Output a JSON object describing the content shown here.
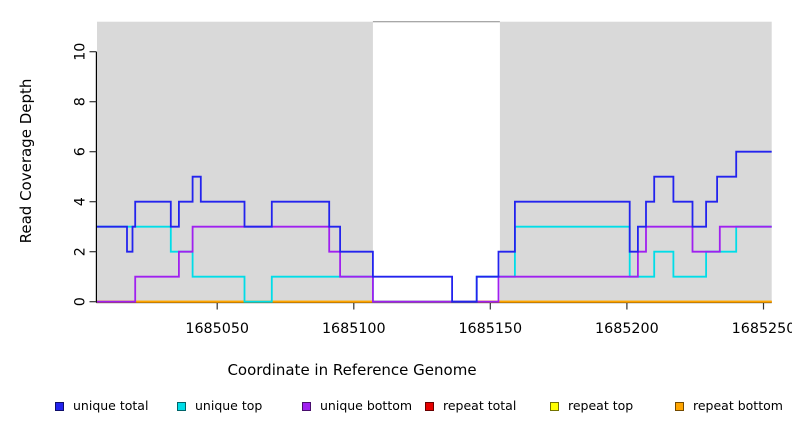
{
  "chart_data": {
    "type": "line",
    "subtype": "step",
    "title": "",
    "xlabel": "Coordinate in Reference Genome",
    "ylabel": "Read Coverage Depth",
    "xlim": [
      1685006,
      1685253
    ],
    "ylim": [
      0,
      11.2
    ],
    "x_ticks": [
      1685050,
      1685100,
      1685150,
      1685200,
      1685250
    ],
    "y_ticks": [
      0,
      2,
      4,
      6,
      8,
      10
    ],
    "grid": false,
    "plot_bg_color": "#d9d9d9",
    "gap_region": {
      "x_start": 1685107,
      "x_end": 1685153.5,
      "color": "#ffffff",
      "top_border_color": "#8c8c8c"
    },
    "axis_color": "#000000",
    "series": [
      {
        "name": "repeat total",
        "color": "#e60000",
        "steps": [
          [
            1685006,
            0
          ]
        ]
      },
      {
        "name": "repeat top",
        "color": "#ffff00",
        "steps": [
          [
            1685006,
            0
          ]
        ]
      },
      {
        "name": "repeat bottom",
        "color": "#ffa500",
        "steps": [
          [
            1685006,
            0
          ]
        ]
      },
      {
        "name": "unique top",
        "color": "#00dde8",
        "steps": [
          [
            1685006,
            3
          ],
          [
            1685033,
            2
          ],
          [
            1685041,
            1
          ],
          [
            1685060,
            0
          ],
          [
            1685070,
            1
          ],
          [
            1685107,
            0
          ],
          [
            1685145,
            1
          ],
          [
            1685159,
            3
          ],
          [
            1685201,
            1
          ],
          [
            1685210,
            2
          ],
          [
            1685217,
            1
          ],
          [
            1685229,
            2
          ],
          [
            1685240,
            3
          ]
        ]
      },
      {
        "name": "unique bottom",
        "color": "#a020f0",
        "steps": [
          [
            1685006,
            0
          ],
          [
            1685020,
            1
          ],
          [
            1685036,
            2
          ],
          [
            1685041,
            3
          ],
          [
            1685091,
            2
          ],
          [
            1685095,
            1
          ],
          [
            1685107,
            0
          ],
          [
            1685153,
            1
          ],
          [
            1685204,
            2
          ],
          [
            1685207,
            3
          ],
          [
            1685224,
            2
          ],
          [
            1685234,
            3
          ]
        ]
      },
      {
        "name": "unique total",
        "color": "#2323ee",
        "steps": [
          [
            1685006,
            3
          ],
          [
            1685017,
            2
          ],
          [
            1685019,
            3
          ],
          [
            1685020,
            4
          ],
          [
            1685033,
            3
          ],
          [
            1685036,
            4
          ],
          [
            1685041,
            5
          ],
          [
            1685044,
            4
          ],
          [
            1685060,
            3
          ],
          [
            1685070,
            4
          ],
          [
            1685091,
            3
          ],
          [
            1685095,
            2
          ],
          [
            1685107,
            1
          ],
          [
            1685136,
            0
          ],
          [
            1685145,
            1
          ],
          [
            1685153,
            2
          ],
          [
            1685159,
            4
          ],
          [
            1685201,
            2
          ],
          [
            1685204,
            3
          ],
          [
            1685207,
            4
          ],
          [
            1685210,
            5
          ],
          [
            1685217,
            4
          ],
          [
            1685224,
            3
          ],
          [
            1685229,
            4
          ],
          [
            1685233,
            5
          ],
          [
            1685240,
            6
          ]
        ]
      }
    ],
    "legend": [
      {
        "label": "unique total",
        "color": "#2323ee"
      },
      {
        "label": "unique top",
        "color": "#00dde8"
      },
      {
        "label": "unique bottom",
        "color": "#a020f0"
      },
      {
        "label": "repeat total",
        "color": "#e60000"
      },
      {
        "label": "repeat top",
        "color": "#ffff00"
      },
      {
        "label": "repeat bottom",
        "color": "#ffa500"
      }
    ]
  }
}
